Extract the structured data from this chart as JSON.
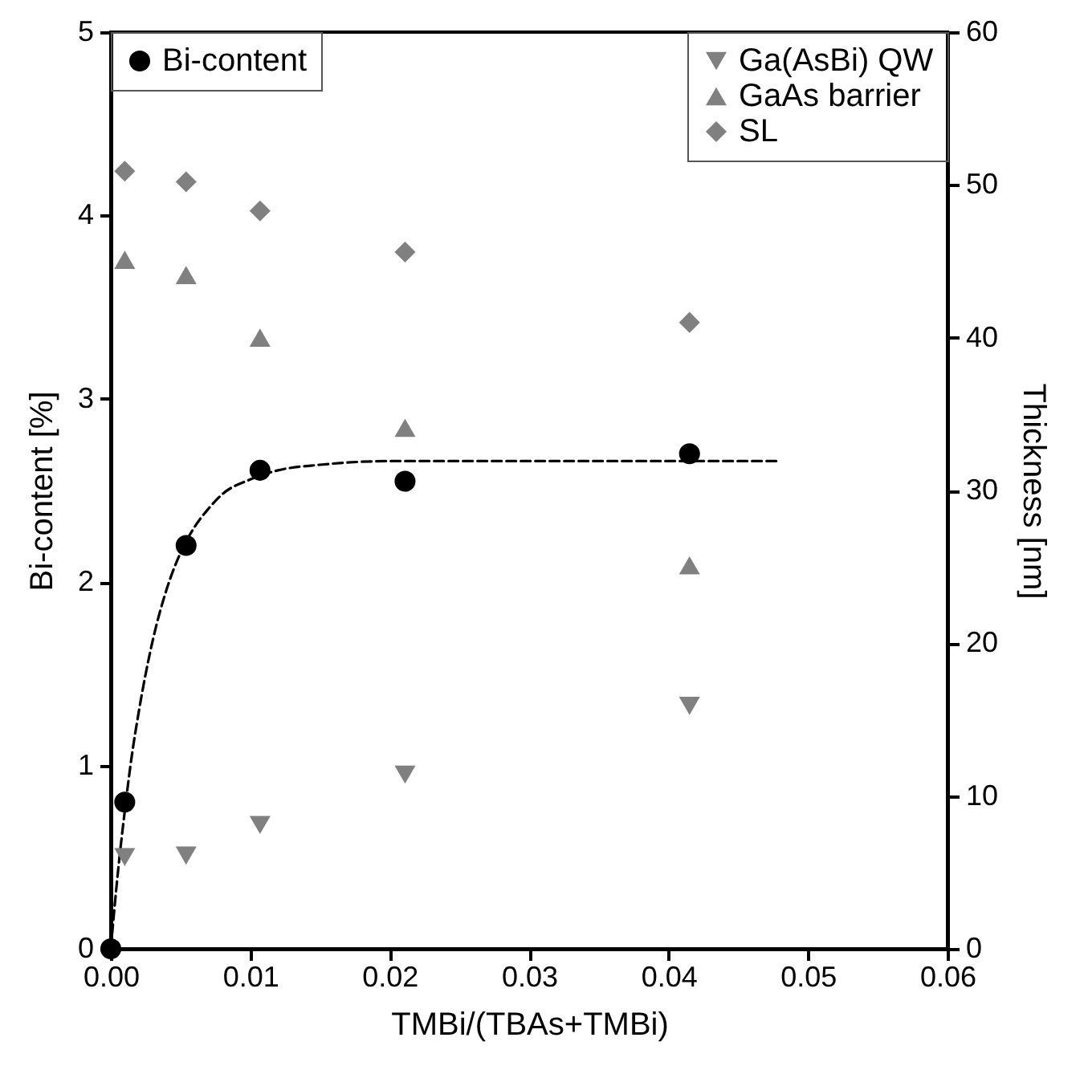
{
  "chart_data": {
    "type": "scatter",
    "xlabel": "TMBi/(TBAs+TMBi)",
    "ylabel": "Bi-content [%]",
    "y2label": "Thickness [nm]",
    "x": [
      0.001,
      0.0054,
      0.0107,
      0.0211,
      0.0415
    ],
    "series": [
      {
        "name": "Bi-content",
        "color": "#000000",
        "marker": "circle",
        "x": [
          0,
          0.001,
          0.0054,
          0.0107,
          0.0211,
          0.0415
        ],
        "values": [
          0,
          0.8,
          2.2,
          2.61,
          2.55,
          2.7
        ]
      },
      {
        "type": "line",
        "color": "#000000",
        "line_style": "dashed",
        "x": [
          0,
          0.0005,
          0.001,
          0.0015,
          0.002,
          0.003,
          0.004,
          0.005,
          0.006,
          0.007,
          0.008,
          0.01,
          0.012,
          0.015,
          0.02,
          0.03,
          0.048
        ],
        "values": [
          0,
          0.41,
          0.75,
          1.05,
          1.29,
          1.68,
          1.96,
          2.16,
          2.3,
          2.4,
          2.48,
          2.56,
          2.61,
          2.64,
          2.66,
          2.66,
          2.66
        ]
      },
      {
        "name": "Ga(AsBi) QW",
        "color": "#808080",
        "marker": "triangle-down",
        "axis": "y2",
        "values": [
          6.0,
          6.1,
          8.1,
          11.4,
          15.9
        ]
      },
      {
        "name": "GaAs barrier",
        "color": "#808080",
        "marker": "triangle",
        "axis": "y2",
        "values": [
          45.1,
          44.1,
          40.0,
          34.1,
          25.1
        ]
      },
      {
        "name": "SL",
        "color": "#808080",
        "marker": "diamond",
        "axis": "y2",
        "values": [
          50.9,
          50.2,
          48.3,
          45.6,
          41.0
        ]
      }
    ],
    "xlim": [
      0,
      0.06
    ],
    "xticks": [
      {
        "value": 0,
        "label": "0.00"
      },
      {
        "value": 0.01,
        "label": "0.01"
      },
      {
        "value": 0.02,
        "label": "0.02"
      },
      {
        "value": 0.03,
        "label": "0.03"
      },
      {
        "value": 0.04,
        "label": "0.04"
      },
      {
        "value": 0.05,
        "label": "0.05"
      },
      {
        "value": 0.06,
        "label": "0.06"
      }
    ],
    "ylim": [
      0,
      5
    ],
    "yticks": [
      0,
      1,
      2,
      3,
      4,
      5
    ],
    "y2lim": [
      0,
      60
    ],
    "y2ticks": [
      0,
      10,
      20,
      30,
      40,
      50,
      60
    ],
    "legend": "top",
    "grid": false
  }
}
